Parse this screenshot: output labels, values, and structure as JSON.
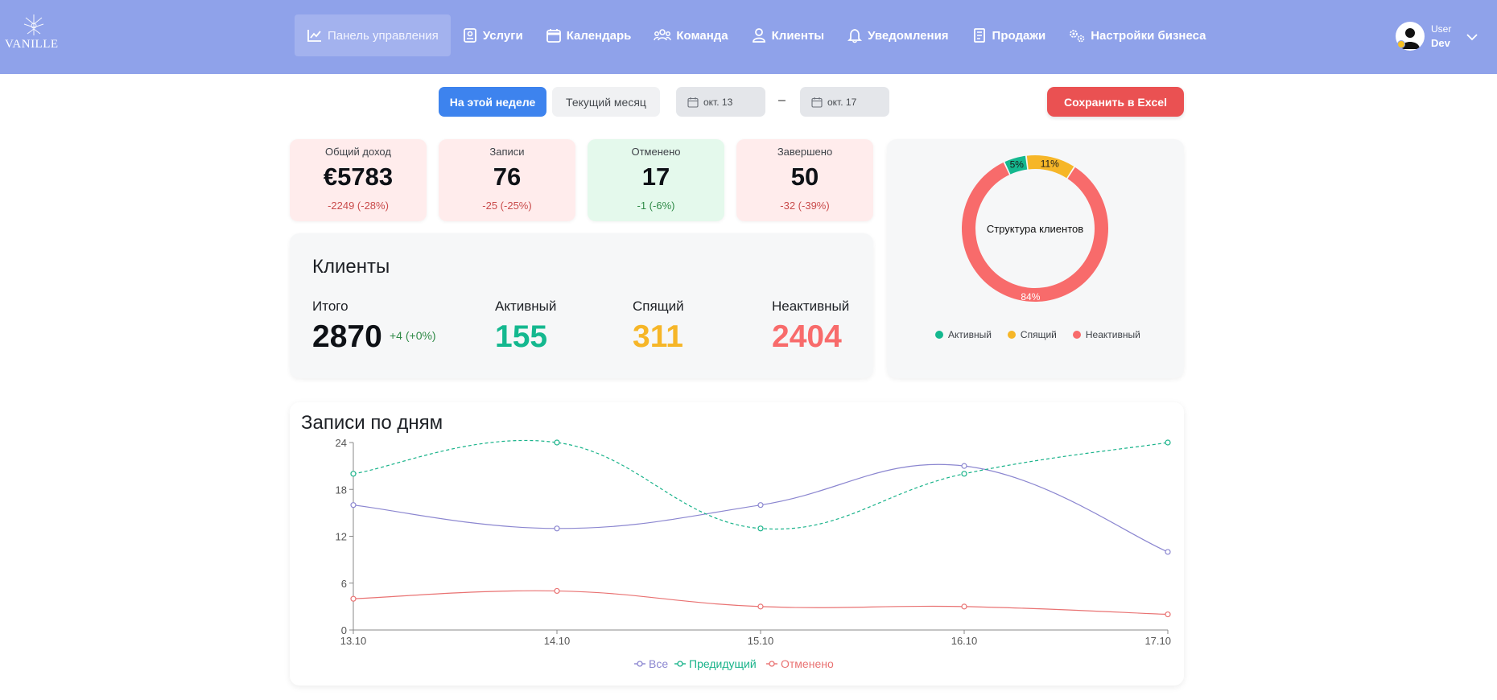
{
  "app": {
    "logo_text": "VANILLE"
  },
  "nav": {
    "items": [
      {
        "label": "Панель управления",
        "icon": "chart-line-icon",
        "active": true
      },
      {
        "label": "Услуги",
        "icon": "book-icon"
      },
      {
        "label": "Календарь",
        "icon": "calendar-icon"
      },
      {
        "label": "Команда",
        "icon": "team-icon"
      },
      {
        "label": "Клиенты",
        "icon": "user-icon"
      },
      {
        "label": "Уведомления",
        "icon": "bell-icon"
      },
      {
        "label": "Продажи",
        "icon": "receipt-icon"
      },
      {
        "label": "Настройки бизнеса",
        "icon": "gears-icon"
      }
    ]
  },
  "user": {
    "role": "User",
    "name": "Dev"
  },
  "toolbar": {
    "week_label": "На этой неделе",
    "month_label": "Текущий месяц",
    "date_from": "окт. 13",
    "date_separator": "–",
    "date_to": "окт. 17",
    "excel_label": "Сохранить в Excel"
  },
  "stats": [
    {
      "label": "Общий доход",
      "value": "€5783",
      "delta": "-2249 (-28%)",
      "tone": "pink",
      "delta_color": "red"
    },
    {
      "label": "Записи",
      "value": "76",
      "delta": "-25 (-25%)",
      "tone": "pink",
      "delta_color": "red"
    },
    {
      "label": "Отменено",
      "value": "17",
      "delta": "-1 (-6%)",
      "tone": "green",
      "delta_color": "green"
    },
    {
      "label": "Завершено",
      "value": "50",
      "delta": "-32 (-39%)",
      "tone": "pink",
      "delta_color": "red"
    }
  ],
  "clients": {
    "title": "Клиенты",
    "total_label": "Итого",
    "total_value": "2870",
    "total_delta": "+4 (+0%)",
    "active_label": "Активный",
    "active_value": "155",
    "sleeping_label": "Спящий",
    "sleeping_value": "311",
    "inactive_label": "Неактивный",
    "inactive_value": "2404"
  },
  "colors": {
    "active": "#14b88f",
    "sleeping": "#f6b628",
    "inactive": "#f86b6b",
    "series_all": "#8b86d0",
    "series_prev": "#19b38a",
    "series_cancelled": "#e97272"
  },
  "donut": {
    "title": "Структура клиентов",
    "slices": [
      {
        "name": "Активный",
        "percent": 5,
        "label": "5%",
        "color": "#14b88f"
      },
      {
        "name": "Спящий",
        "percent": 11,
        "label": "11%",
        "color": "#f6b628"
      },
      {
        "name": "Неактивный",
        "percent": 84,
        "label": "84%",
        "color": "#f86b6b"
      }
    ]
  },
  "chart_data": {
    "type": "line",
    "title": "Записи по дням",
    "categories": [
      "13.10",
      "14.10",
      "15.10",
      "16.10",
      "17.10"
    ],
    "ylim": [
      0,
      24
    ],
    "yticks": [
      0,
      6,
      12,
      18,
      24
    ],
    "series": [
      {
        "name": "Все",
        "values": [
          16,
          13,
          16,
          21,
          10
        ],
        "color": "#8b86d0",
        "dashed": false
      },
      {
        "name": "Предидущий",
        "values": [
          20,
          24,
          13,
          20,
          24
        ],
        "color": "#19b38a",
        "dashed": true
      },
      {
        "name": "Отменено",
        "values": [
          4,
          5,
          3,
          3,
          2
        ],
        "color": "#e97272",
        "dashed": false
      }
    ]
  }
}
